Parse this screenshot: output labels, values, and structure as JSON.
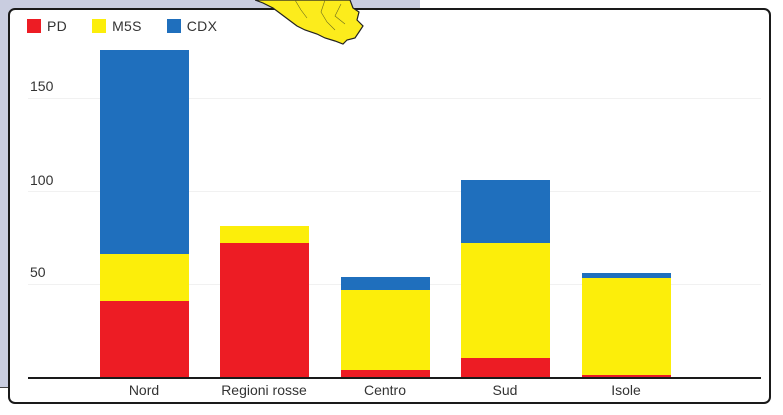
{
  "legend": {
    "items": [
      {
        "label": "PD",
        "color": "#ed1c24"
      },
      {
        "label": "M5S",
        "color": "#fcee0a"
      },
      {
        "label": "CDX",
        "color": "#1f6fbd"
      }
    ]
  },
  "axis": {
    "y_ticks": [
      "150",
      "100",
      "50"
    ]
  },
  "chart_data": {
    "type": "bar",
    "stacked": true,
    "title": "",
    "xlabel": "",
    "ylabel": "",
    "categories": [
      "Nord",
      "Regioni rosse",
      "Centro",
      "Sud",
      "Isole"
    ],
    "series": [
      {
        "name": "PD",
        "color": "#ed1c24",
        "values": [
          41,
          72,
          4,
          10,
          1
        ]
      },
      {
        "name": "M5S",
        "color": "#fcee0a",
        "values": [
          25,
          9,
          43,
          62,
          52
        ]
      },
      {
        "name": "CDX",
        "color": "#1f6fbd",
        "values": [
          110,
          0,
          7,
          34,
          3
        ]
      }
    ],
    "y_ticks": [
      50,
      100,
      150
    ],
    "ylim": [
      0,
      180
    ],
    "grid": true,
    "legend_position": "top-left"
  }
}
